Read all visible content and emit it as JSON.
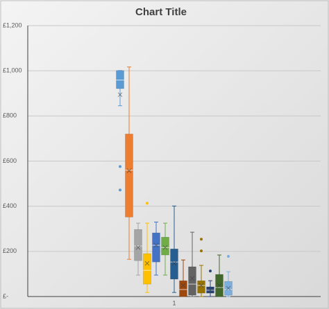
{
  "chart_data": {
    "type": "box",
    "title": "Chart Title",
    "categories": [
      "1"
    ],
    "ylim": [
      0,
      1200
    ],
    "yticks": [
      {
        "value": 0,
        "label": "£-"
      },
      {
        "value": 200,
        "label": "£200"
      },
      {
        "value": 400,
        "label": "£400"
      },
      {
        "value": 600,
        "label": "£600"
      },
      {
        "value": 800,
        "label": "£800"
      },
      {
        "value": 1000,
        "label": "£1,000"
      },
      {
        "value": 1200,
        "label": "£1,200"
      }
    ],
    "grid": true,
    "series": [
      {
        "color": "#5b9bd5",
        "min": 845,
        "q1": 921,
        "median": 959,
        "q3": 1001,
        "max": 1001,
        "mean": 894,
        "outliers": [
          576,
          472
        ]
      },
      {
        "color": "#ed7d31",
        "min": 165,
        "q1": 352,
        "median": 560,
        "q3": 720,
        "max": 1017,
        "mean": 557,
        "outliers": []
      },
      {
        "color": "#a5a5a5",
        "min": 95,
        "q1": 159,
        "median": 224,
        "q3": 297,
        "max": 325,
        "mean": 217,
        "outliers": []
      },
      {
        "color": "#ffc000",
        "min": 18,
        "q1": 55,
        "median": 116,
        "q3": 190,
        "max": 325,
        "mean": 147,
        "outliers": [
          413
        ]
      },
      {
        "color": "#4472c4",
        "min": 95,
        "q1": 153,
        "median": 227,
        "q3": 282,
        "max": 330,
        "mean": 227,
        "outliers": []
      },
      {
        "color": "#70ad47",
        "min": 95,
        "q1": 184,
        "median": 217,
        "q3": 263,
        "max": 325,
        "mean": 217,
        "outliers": []
      },
      {
        "color": "#255e91",
        "min": 18,
        "q1": 77,
        "median": 153,
        "q3": 211,
        "max": 401,
        "mean": 147,
        "outliers": []
      },
      {
        "color": "#9e480e",
        "min": 0,
        "q1": 0,
        "median": 31,
        "q3": 70,
        "max": 162,
        "mean": 49,
        "outliers": []
      },
      {
        "color": "#636363",
        "min": 0,
        "q1": 6,
        "median": 55,
        "q3": 132,
        "max": 285,
        "mean": 80,
        "outliers": []
      },
      {
        "color": "#997300",
        "min": 0,
        "q1": 15,
        "median": 49,
        "q3": 70,
        "max": 138,
        "mean": 49,
        "outliers": [
          254,
          202
        ]
      },
      {
        "color": "#264478",
        "min": 0,
        "q1": 15,
        "median": 28,
        "q3": 43,
        "max": 70,
        "mean": 28,
        "outliers": [
          113
        ]
      },
      {
        "color": "#43682b",
        "min": 0,
        "q1": 0,
        "median": 40,
        "q3": 98,
        "max": 184,
        "mean": 49,
        "outliers": []
      },
      {
        "color": "#7cafdd",
        "min": 0,
        "q1": 6,
        "median": 31,
        "q3": 67,
        "max": 110,
        "mean": 37,
        "outliers": [
          178
        ]
      }
    ]
  }
}
